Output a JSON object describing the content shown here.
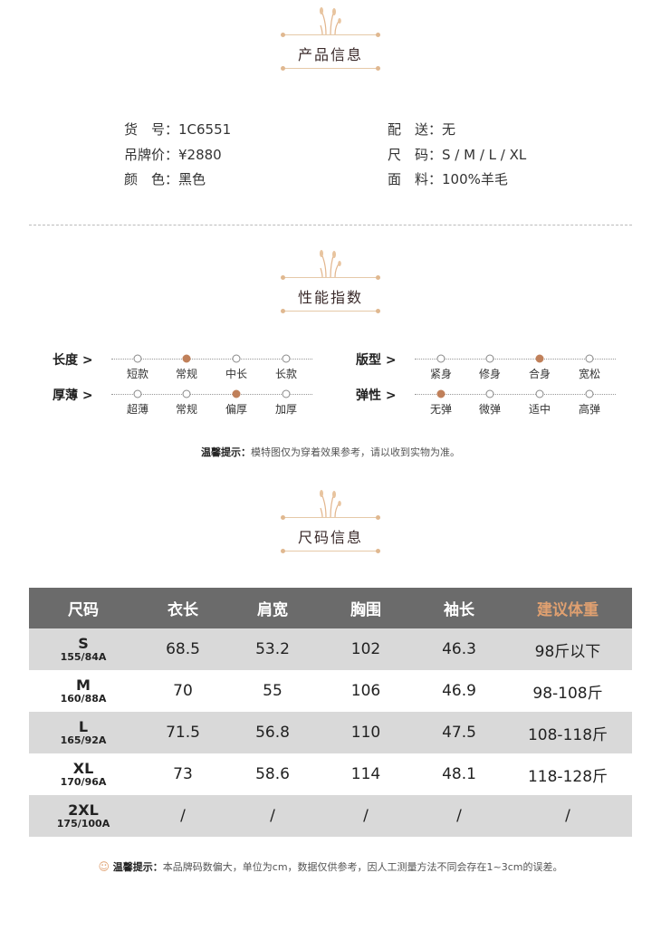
{
  "sections": {
    "product": "产品信息",
    "performance": "性能指数",
    "size": "尺码信息"
  },
  "product": {
    "left": [
      "货　号：1C6551",
      "吊牌价：¥2880",
      "颜　色：黑色"
    ],
    "right": [
      "配　送：无",
      "尺　码：S / M / L / XL",
      "面　料：100%羊毛"
    ]
  },
  "performance": [
    {
      "label": "长度 >",
      "options": [
        "短款",
        "常规",
        "中长",
        "长款"
      ],
      "selected": 1
    },
    {
      "label": "厚薄 >",
      "options": [
        "超薄",
        "常规",
        "偏厚",
        "加厚"
      ],
      "selected": 2
    },
    {
      "label": "版型 >",
      "options": [
        "紧身",
        "修身",
        "合身",
        "宽松"
      ],
      "selected": 2
    },
    {
      "label": "弹性 >",
      "options": [
        "无弹",
        "微弹",
        "适中",
        "高弹"
      ],
      "selected": 0
    }
  ],
  "perf_note": {
    "title": "温馨提示：",
    "text": "模特图仅为穿着效果参考，请以收到实物为准。"
  },
  "size_table": {
    "headers": [
      "尺码",
      "衣长",
      "肩宽",
      "胸围",
      "袖长",
      "建议体重"
    ],
    "rows": [
      {
        "size": "S",
        "sub": "155/84A",
        "cells": [
          "68.5",
          "53.2",
          "102",
          "46.3",
          "98斤以下"
        ]
      },
      {
        "size": "M",
        "sub": "160/88A",
        "cells": [
          "70",
          "55",
          "106",
          "46.9",
          "98-108斤"
        ]
      },
      {
        "size": "L",
        "sub": "165/92A",
        "cells": [
          "71.5",
          "56.8",
          "110",
          "47.5",
          "108-118斤"
        ]
      },
      {
        "size": "XL",
        "sub": "170/96A",
        "cells": [
          "73",
          "58.6",
          "114",
          "48.1",
          "118-128斤"
        ]
      },
      {
        "size": "2XL",
        "sub": "175/100A",
        "cells": [
          "/",
          "/",
          "/",
          "/",
          "/"
        ]
      }
    ]
  },
  "size_note": {
    "title": "温馨提示：",
    "text": "本品牌码数偏大，单位为cm，数据仅供参考，因人工测量方法不同会存在1~3cm的误差。"
  },
  "colors": {
    "accent": "#c0805a",
    "header_bg": "#6b6b6b",
    "row_alt": "#d9d9d9"
  }
}
